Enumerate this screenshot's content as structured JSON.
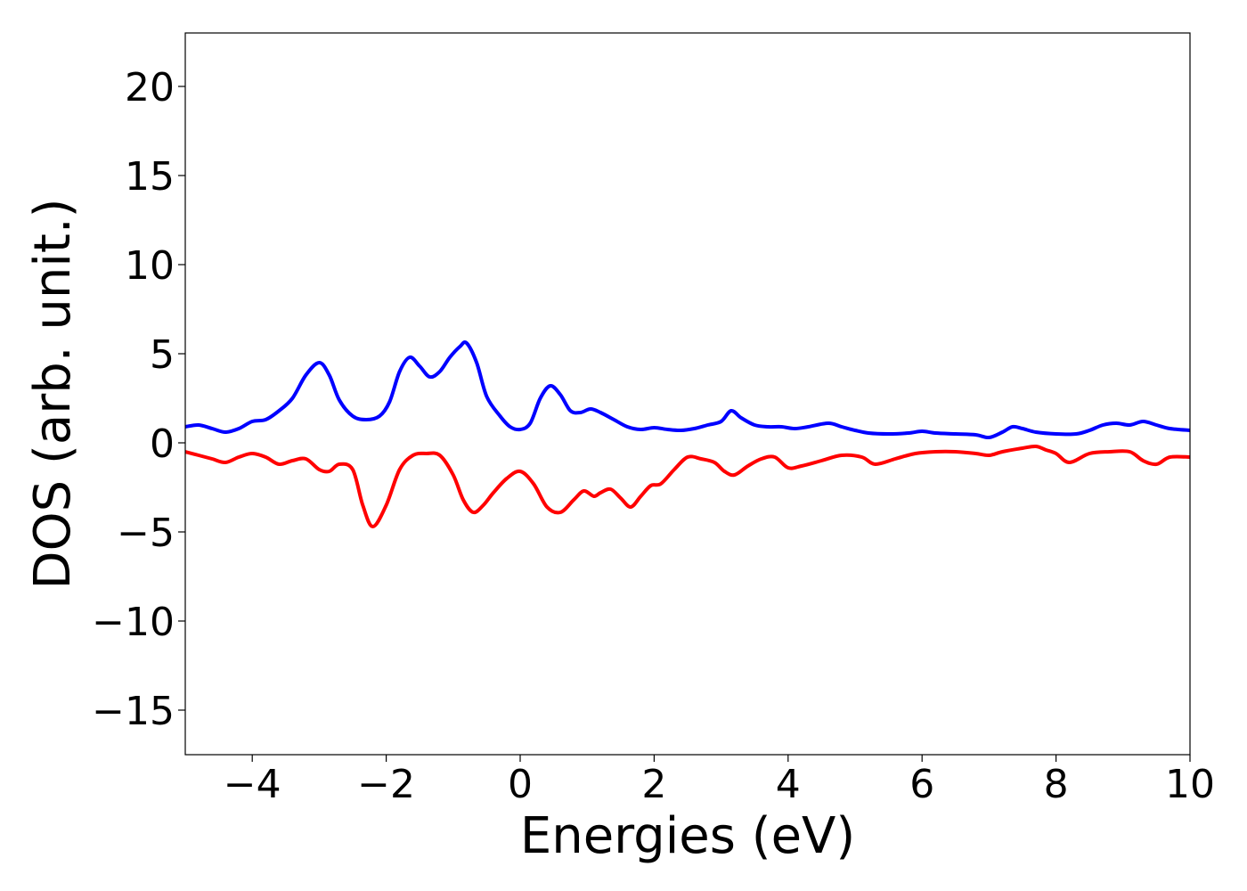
{
  "chart_data": {
    "type": "line",
    "title": "",
    "xlabel": "Energies (eV)",
    "ylabel": "DOS (arb. unit.)",
    "xlim": [
      -5,
      10
    ],
    "ylim": [
      -17.5,
      23
    ],
    "xticks": [
      -4,
      -2,
      0,
      2,
      4,
      6,
      8,
      10
    ],
    "yticks": [
      -15,
      -10,
      -5,
      0,
      5,
      10,
      15,
      20
    ],
    "xtick_labels": [
      "−4",
      "−2",
      "0",
      "2",
      "4",
      "6",
      "8",
      "10"
    ],
    "ytick_labels": [
      "−15",
      "−10",
      "−5",
      "0",
      "5",
      "10",
      "15",
      "20"
    ],
    "grid": false,
    "legend": "none",
    "series": [
      {
        "color": "#0000ff",
        "x": [
          -5.0,
          -4.8,
          -4.6,
          -4.4,
          -4.2,
          -4.0,
          -3.8,
          -3.6,
          -3.4,
          -3.2,
          -3.0,
          -2.85,
          -2.7,
          -2.5,
          -2.3,
          -2.1,
          -1.95,
          -1.8,
          -1.65,
          -1.5,
          -1.35,
          -1.2,
          -1.05,
          -0.9,
          -0.8,
          -0.65,
          -0.5,
          -0.3,
          -0.15,
          0.0,
          0.15,
          0.3,
          0.45,
          0.6,
          0.75,
          0.9,
          1.05,
          1.2,
          1.4,
          1.6,
          1.8,
          2.0,
          2.2,
          2.4,
          2.6,
          2.8,
          3.0,
          3.15,
          3.3,
          3.5,
          3.7,
          3.9,
          4.1,
          4.3,
          4.6,
          4.8,
          5.0,
          5.2,
          5.5,
          5.8,
          6.0,
          6.2,
          6.5,
          6.8,
          7.0,
          7.2,
          7.35,
          7.5,
          7.7,
          8.0,
          8.3,
          8.5,
          8.7,
          8.9,
          9.1,
          9.3,
          9.5,
          9.7,
          10.0
        ],
        "values": [
          0.9,
          1.0,
          0.8,
          0.6,
          0.8,
          1.2,
          1.3,
          1.8,
          2.5,
          3.8,
          4.5,
          3.8,
          2.4,
          1.5,
          1.3,
          1.5,
          2.3,
          4.0,
          4.8,
          4.3,
          3.7,
          4.0,
          4.8,
          5.4,
          5.6,
          4.5,
          2.6,
          1.5,
          0.9,
          0.75,
          1.1,
          2.5,
          3.2,
          2.7,
          1.8,
          1.7,
          1.9,
          1.7,
          1.3,
          0.9,
          0.75,
          0.85,
          0.75,
          0.7,
          0.8,
          1.0,
          1.2,
          1.8,
          1.4,
          1.0,
          0.9,
          0.9,
          0.8,
          0.9,
          1.1,
          0.9,
          0.7,
          0.55,
          0.5,
          0.55,
          0.65,
          0.55,
          0.5,
          0.45,
          0.3,
          0.6,
          0.9,
          0.8,
          0.6,
          0.5,
          0.5,
          0.7,
          1.0,
          1.1,
          1.0,
          1.2,
          1.0,
          0.8,
          0.7
        ]
      },
      {
        "color": "#ff0000",
        "x": [
          -5.0,
          -4.8,
          -4.6,
          -4.4,
          -4.2,
          -4.0,
          -3.8,
          -3.6,
          -3.4,
          -3.2,
          -3.0,
          -2.85,
          -2.7,
          -2.5,
          -2.35,
          -2.2,
          -2.0,
          -1.8,
          -1.6,
          -1.4,
          -1.2,
          -1.0,
          -0.85,
          -0.7,
          -0.55,
          -0.4,
          -0.2,
          0.0,
          0.2,
          0.4,
          0.6,
          0.8,
          0.95,
          1.1,
          1.2,
          1.35,
          1.5,
          1.65,
          1.8,
          1.95,
          2.1,
          2.3,
          2.5,
          2.7,
          2.9,
          3.05,
          3.2,
          3.4,
          3.6,
          3.8,
          4.0,
          4.2,
          4.5,
          4.8,
          5.1,
          5.3,
          5.6,
          5.9,
          6.2,
          6.5,
          6.8,
          7.0,
          7.2,
          7.5,
          7.7,
          7.85,
          8.0,
          8.2,
          8.5,
          8.8,
          9.1,
          9.3,
          9.5,
          9.7,
          10.0
        ],
        "values": [
          -0.5,
          -0.7,
          -0.9,
          -1.1,
          -0.8,
          -0.6,
          -0.8,
          -1.2,
          -1.0,
          -0.9,
          -1.5,
          -1.6,
          -1.2,
          -1.5,
          -3.5,
          -4.7,
          -3.5,
          -1.5,
          -0.7,
          -0.6,
          -0.7,
          -1.8,
          -3.2,
          -3.9,
          -3.5,
          -2.8,
          -2.0,
          -1.6,
          -2.3,
          -3.6,
          -3.9,
          -3.2,
          -2.7,
          -3.0,
          -2.8,
          -2.6,
          -3.1,
          -3.6,
          -3.0,
          -2.4,
          -2.3,
          -1.5,
          -0.8,
          -0.9,
          -1.1,
          -1.6,
          -1.8,
          -1.3,
          -0.9,
          -0.8,
          -1.4,
          -1.3,
          -1.0,
          -0.7,
          -0.8,
          -1.2,
          -0.9,
          -0.6,
          -0.5,
          -0.5,
          -0.6,
          -0.7,
          -0.5,
          -0.3,
          -0.2,
          -0.4,
          -0.6,
          -1.1,
          -0.6,
          -0.5,
          -0.5,
          -1.0,
          -1.2,
          -0.8,
          -0.8
        ]
      }
    ]
  }
}
